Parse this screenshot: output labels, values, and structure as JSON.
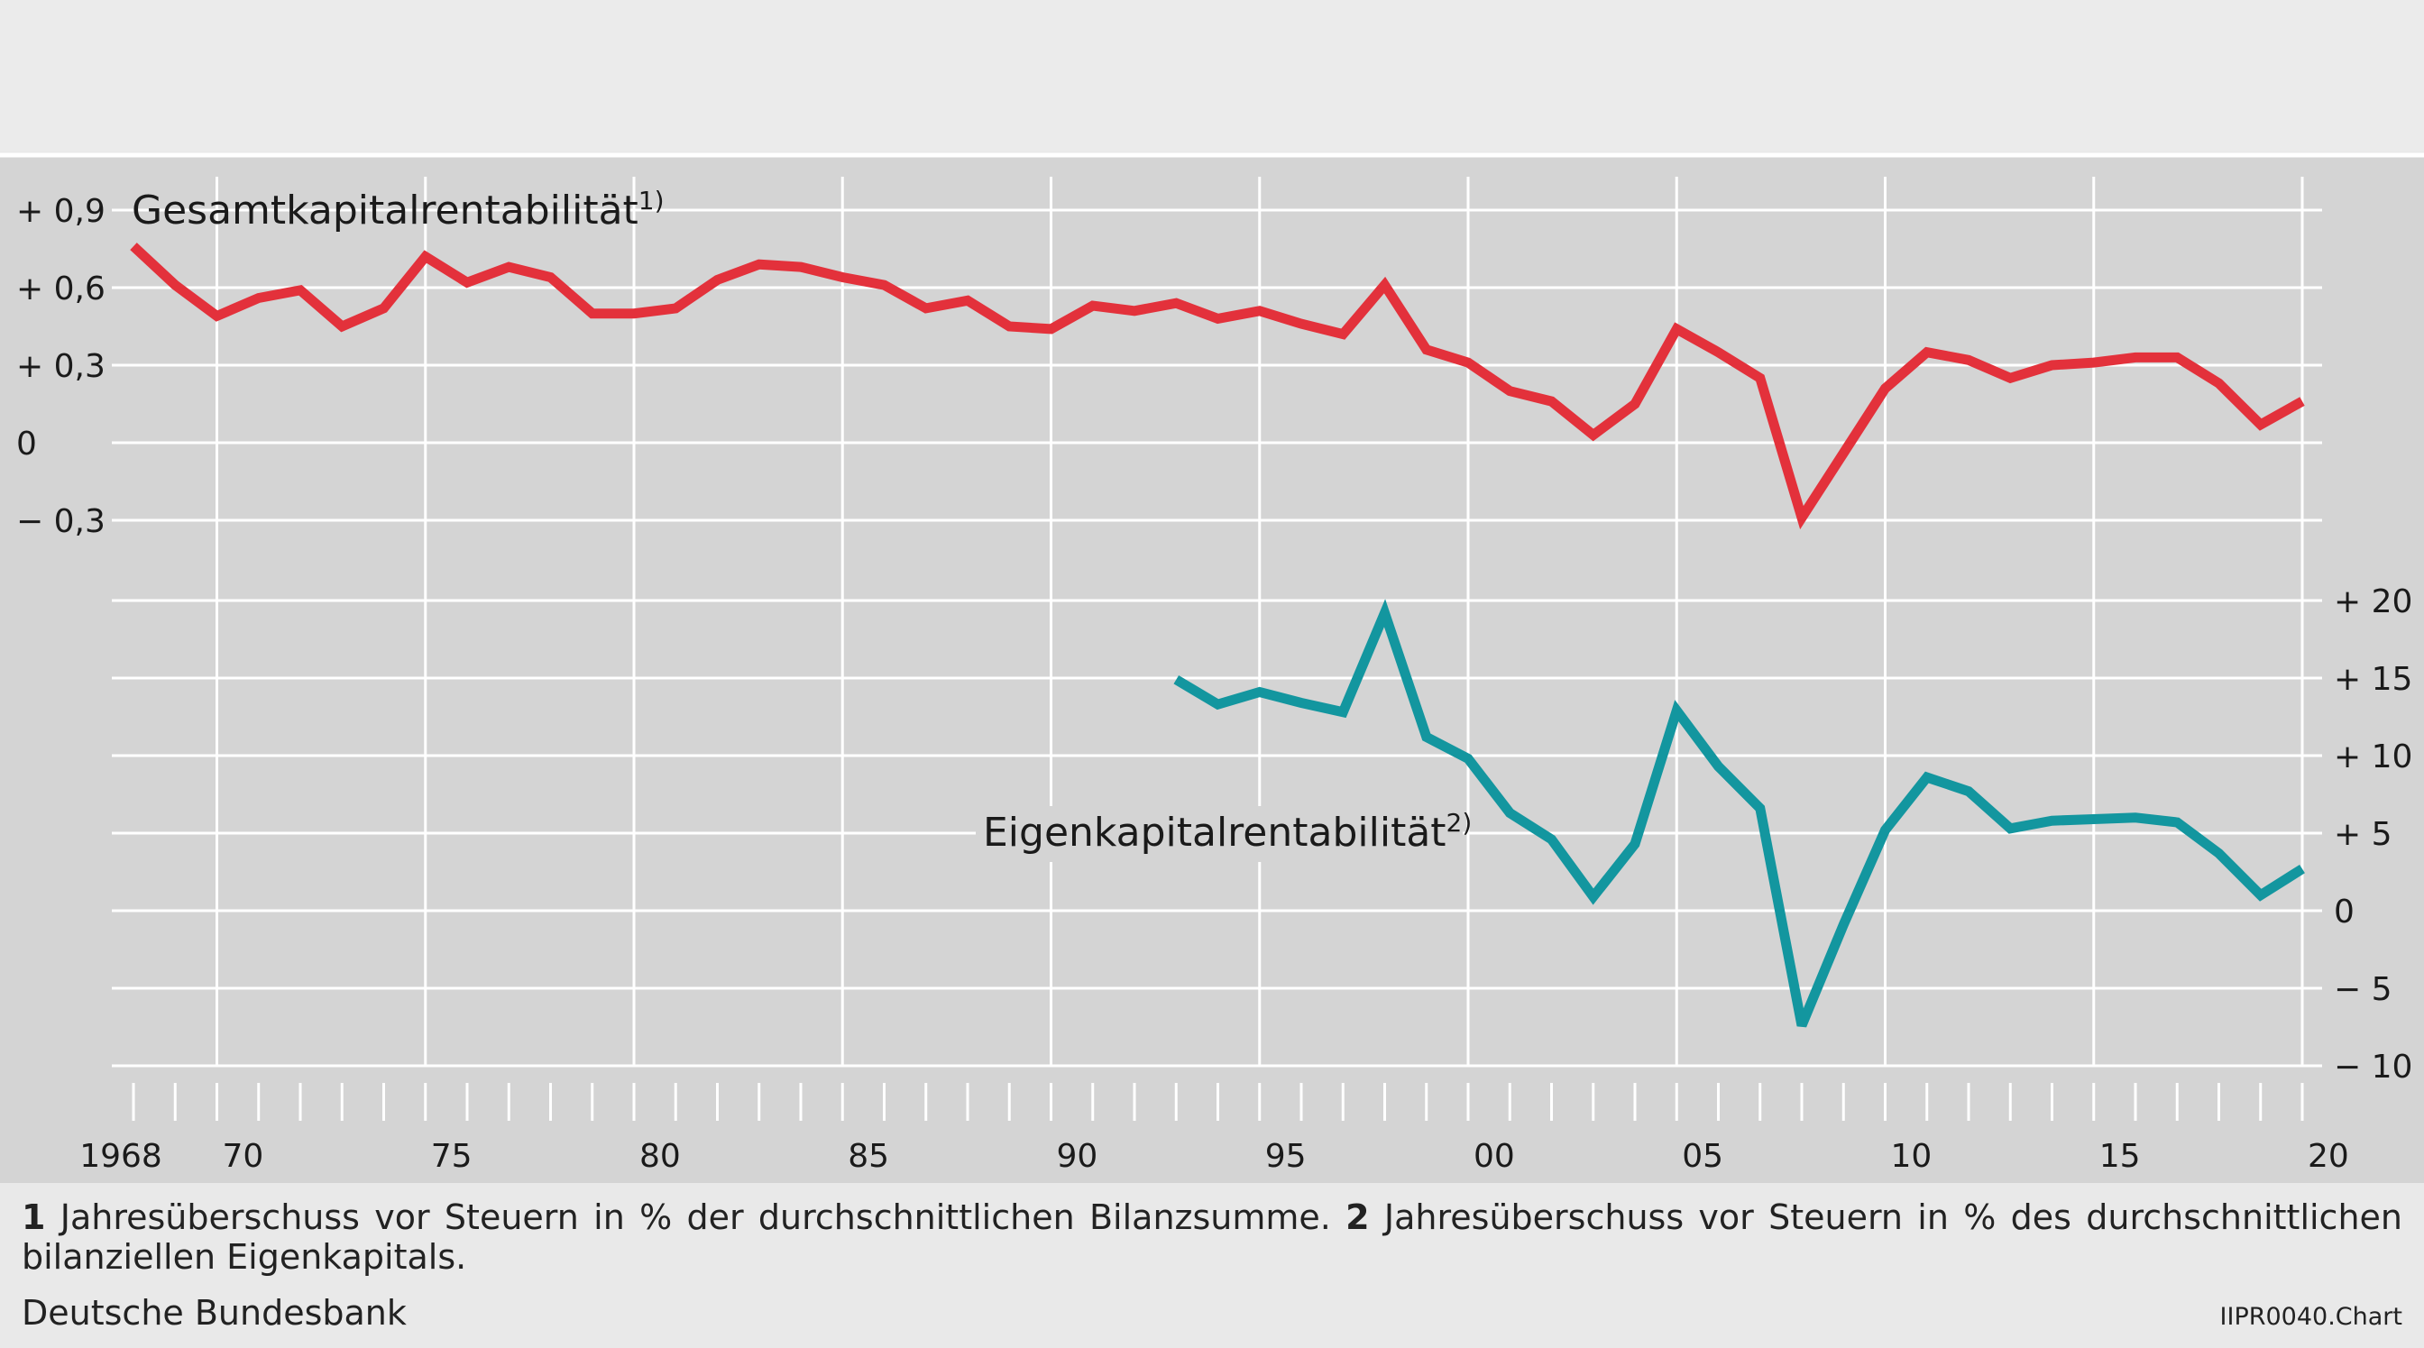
{
  "chart_data": {
    "type": "line",
    "x_tick_labels": [
      "1968",
      "70",
      "75",
      "80",
      "85",
      "90",
      "95",
      "00",
      "05",
      "10",
      "15",
      "20"
    ],
    "x_tick_years": [
      1968,
      1970,
      1975,
      1980,
      1985,
      1990,
      1995,
      2000,
      2005,
      2010,
      2015,
      2020
    ],
    "x_range": [
      1968,
      2020
    ],
    "grid": true,
    "left_axis": {
      "tick_labels": [
        "+ 0,9",
        "+ 0,6",
        "+ 0,3",
        "0",
        "− 0,3"
      ],
      "tick_values": [
        0.9,
        0.6,
        0.3,
        0,
        -0.3
      ],
      "range": [
        -0.3,
        0.9
      ]
    },
    "right_axis": {
      "tick_labels": [
        "+ 20",
        "+ 15",
        "+ 10",
        "+ 5",
        "0",
        "− 5",
        "− 10"
      ],
      "tick_values": [
        20,
        15,
        10,
        5,
        0,
        -5,
        -10
      ],
      "range": [
        -10,
        20
      ]
    },
    "series": [
      {
        "name": "Gesamtkapitalrentabilität",
        "name_sup": "1)",
        "axis": "left",
        "color": "#e3313b",
        "x": [
          1968,
          1969,
          1970,
          1971,
          1972,
          1973,
          1974,
          1975,
          1976,
          1977,
          1978,
          1979,
          1980,
          1981,
          1982,
          1983,
          1984,
          1985,
          1986,
          1987,
          1988,
          1989,
          1990,
          1991,
          1992,
          1993,
          1994,
          1995,
          1996,
          1997,
          1998,
          1999,
          2000,
          2001,
          2002,
          2003,
          2004,
          2005,
          2006,
          2007,
          2008,
          2009,
          2010,
          2011,
          2012,
          2013,
          2014,
          2015,
          2016,
          2017,
          2018,
          2019,
          2020
        ],
        "values": [
          0.76,
          0.61,
          0.49,
          0.56,
          0.59,
          0.45,
          0.52,
          0.72,
          0.62,
          0.68,
          0.64,
          0.5,
          0.5,
          0.52,
          0.63,
          0.69,
          0.68,
          0.64,
          0.61,
          0.52,
          0.55,
          0.45,
          0.44,
          0.53,
          0.51,
          0.54,
          0.48,
          0.51,
          0.46,
          0.42,
          0.61,
          0.36,
          0.31,
          0.2,
          0.16,
          0.03,
          0.15,
          0.44,
          0.35,
          0.25,
          -0.29,
          -0.04,
          0.21,
          0.35,
          0.32,
          0.25,
          0.3,
          0.31,
          0.33,
          0.33,
          0.23,
          0.07,
          0.16
        ]
      },
      {
        "name": "Eigenkapitalrentabilität",
        "name_sup": "2)",
        "axis": "right",
        "color": "#13969f",
        "x": [
          1993,
          1994,
          1995,
          1996,
          1997,
          1998,
          1999,
          2000,
          2001,
          2002,
          2003,
          2004,
          2005,
          2006,
          2007,
          2008,
          2009,
          2010,
          2011,
          2012,
          2013,
          2014,
          2015,
          2016,
          2017,
          2018,
          2019,
          2020
        ],
        "values": [
          14.9,
          13.3,
          14.1,
          13.4,
          12.8,
          19.2,
          11.2,
          9.8,
          6.3,
          4.6,
          0.9,
          4.3,
          12.9,
          9.3,
          6.6,
          -7.4,
          -0.9,
          5.2,
          8.6,
          7.7,
          5.3,
          5.8,
          5.9,
          6.0,
          5.7,
          3.7,
          1.0,
          2.7
        ]
      }
    ]
  },
  "footnote": {
    "num1": "1",
    "text1": " Jahresüberschuss vor Steuern in % der durchschnittlichen Bilanzsumme. ",
    "num2": "2",
    "text2": " Jahresüberschuss vor Steuern in % des durchschnittlichen bilanziellen Eigenkapitals."
  },
  "source": "Deutsche Bundesbank",
  "chart_code": "IIPR0040.Chart"
}
